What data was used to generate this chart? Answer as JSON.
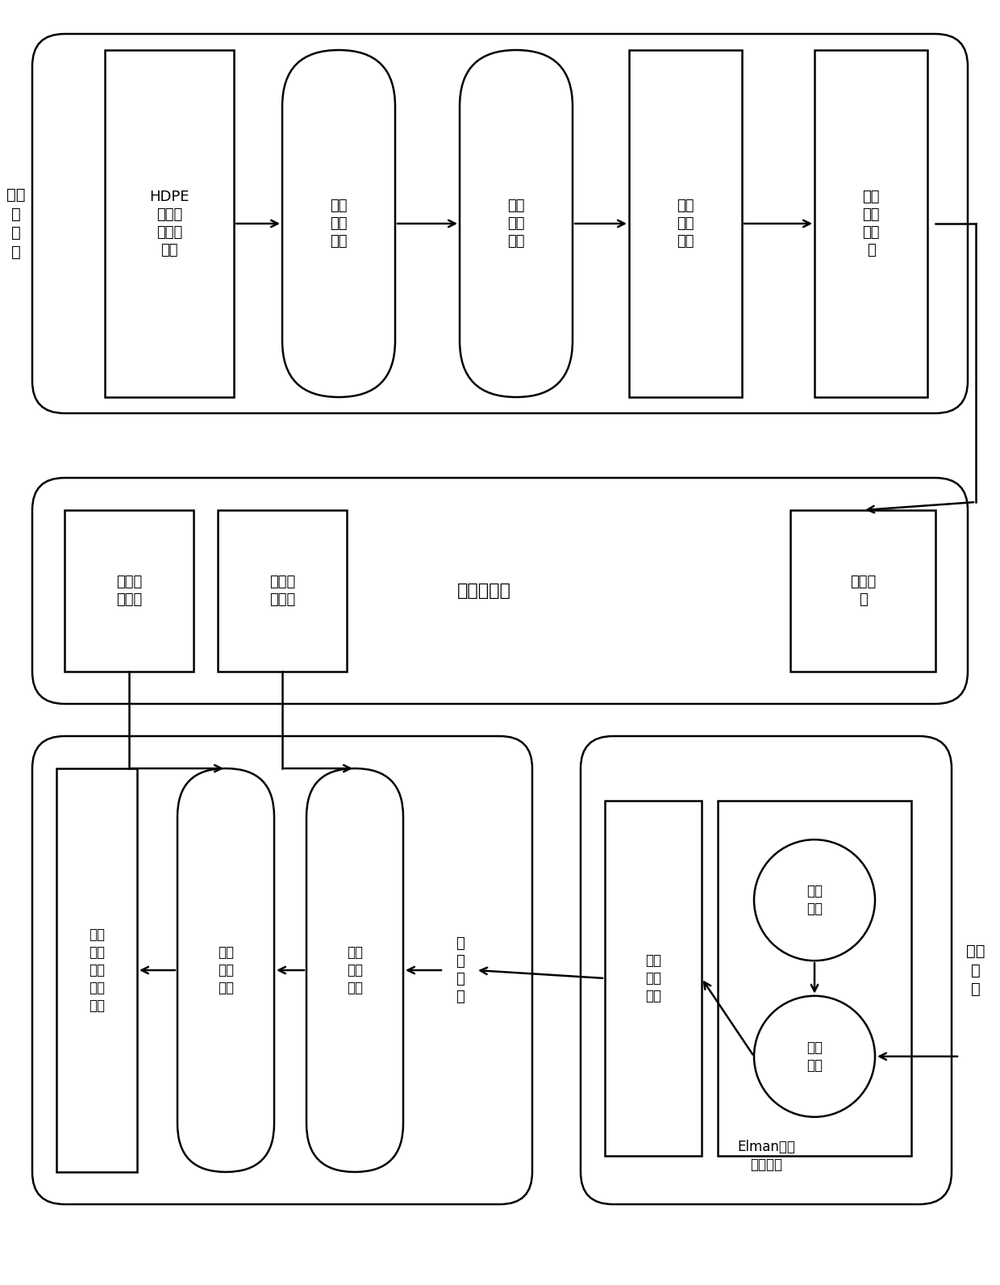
{
  "bg_color": "#ffffff",
  "line_color": "#000000",
  "section1_label": "数据\n预\n处\n理",
  "section2_label": "故障数据库",
  "section3_right_label": "特征\n预\n测",
  "box1_text": "HDPE\n聚合反\n应现场\n数据",
  "box2_text": "缺失\n数据\n填充",
  "box3_text": "异常\n数据\n修正",
  "box4_text": "检测\n基元\n表示",
  "box5_text": "预处\n理结\n果输\n出",
  "box6_text": "故障解\n决方案",
  "box7_text": "报警特\n征信息",
  "box8_text": "数据存\n储",
  "box9_text": "故障\n预测\n结果\n实时\n显示",
  "box10_text": "故障\n可拓\n推理",
  "box11_text": "故障\n可拓\n监测",
  "box12_text": "故\n障\n识\n别",
  "box13_text": "预测\n结果\n输出",
  "box14_text": "模型\n建立",
  "box15_text": "在线\n预测",
  "box16_text": "Elman网络\n预测模型"
}
